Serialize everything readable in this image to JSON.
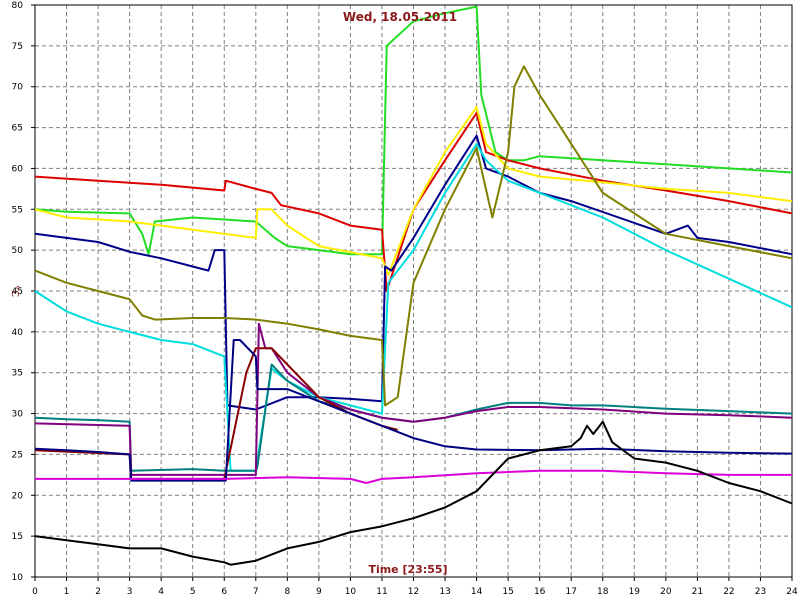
{
  "chart_data": {
    "type": "line",
    "title": "Wed, 18.05.2011",
    "xlabel": "Time [23:55]",
    "ylabel": "°C",
    "xlim": [
      0,
      24
    ],
    "ylim": [
      10,
      80
    ],
    "xticks": [
      "0",
      "1",
      "2",
      "3",
      "4",
      "5",
      "6",
      "7",
      "8",
      "9",
      "10",
      "11",
      "12",
      "13",
      "14",
      "15",
      "16",
      "17",
      "18",
      "19",
      "20",
      "21",
      "22",
      "23",
      "24"
    ],
    "yticks": [
      "10",
      "15",
      "20",
      "25",
      "30",
      "35",
      "40",
      "45",
      "50",
      "55",
      "60",
      "65",
      "70",
      "75",
      "80"
    ],
    "grid": true,
    "legend": "none",
    "background": "#ffffff",
    "grid_color": "#808080",
    "series": [
      {
        "color": "#22dd22",
        "x": [
          0,
          1,
          3,
          3.4,
          3.6,
          3.8,
          5,
          7,
          7.6,
          8,
          9,
          10,
          11,
          11.15,
          12,
          13,
          14,
          14.15,
          14.6,
          15,
          15.5,
          16,
          18,
          20,
          22,
          24
        ],
        "y": [
          55,
          54.7,
          54.5,
          52,
          49.5,
          53.5,
          54,
          53.5,
          51.5,
          50.5,
          50,
          49.5,
          49.5,
          75,
          78,
          79,
          79.8,
          69,
          62,
          61,
          61,
          61.5,
          61,
          60.5,
          60,
          59.5
        ]
      },
      {
        "color": "#dd0000",
        "x": [
          0,
          2,
          4,
          6,
          6.05,
          7,
          7.5,
          7.8,
          9,
          10,
          11,
          11.15,
          12,
          13,
          14,
          14.3,
          15,
          16,
          18,
          20,
          22,
          24
        ],
        "y": [
          59,
          58.5,
          58,
          57.3,
          58.5,
          57.5,
          57,
          55.5,
          54.5,
          53,
          52.5,
          45,
          55,
          61,
          66.8,
          62,
          61,
          60,
          58.5,
          57.3,
          56,
          54.5
        ]
      },
      {
        "color": "#ffee00",
        "x": [
          0,
          1,
          3,
          5,
          7,
          7.05,
          7.5,
          8,
          9,
          11,
          11.2,
          12,
          13,
          14,
          14.3,
          15,
          16,
          18,
          20,
          22,
          24
        ],
        "y": [
          55,
          54,
          53.5,
          52.5,
          51.5,
          55,
          55,
          53,
          50.5,
          49,
          47,
          55,
          62,
          67.5,
          63,
          60,
          59,
          58.3,
          57.5,
          57,
          56
        ]
      },
      {
        "color": "#00008b",
        "x": [
          0,
          2,
          3,
          4,
          5,
          5.5,
          5.7,
          6,
          6.1,
          7,
          8,
          9,
          10,
          11,
          11.1,
          11.3,
          12,
          13,
          14,
          14.3,
          15,
          16,
          17,
          20,
          20.7,
          21,
          22,
          24
        ],
        "y": [
          52,
          51,
          49.8,
          49,
          48,
          47.5,
          50,
          50,
          31,
          30.5,
          32,
          32,
          31.8,
          31.5,
          48,
          47.5,
          51.5,
          58,
          64,
          60,
          59,
          57,
          56,
          52,
          53,
          51.5,
          51,
          49.5
        ]
      },
      {
        "color": "#00dddd",
        "x": [
          0,
          1,
          2,
          3,
          4,
          5,
          6,
          6.2,
          7,
          7.5,
          8,
          9,
          10,
          11,
          11.2,
          12,
          13,
          14,
          14.3,
          15,
          16,
          18,
          20,
          22,
          24
        ],
        "y": [
          45,
          42.5,
          41,
          40,
          39,
          38.5,
          37,
          23,
          23,
          35.5,
          34,
          32,
          31,
          30,
          46,
          50,
          57,
          63,
          61,
          58.5,
          57,
          54,
          50,
          46.5,
          43
        ]
      },
      {
        "color": "#808000",
        "x": [
          0,
          1,
          2,
          3,
          3.4,
          3.8,
          5,
          6,
          7,
          8,
          9,
          10,
          11,
          11.1,
          11.5,
          12,
          13,
          14,
          14.5,
          15,
          15.2,
          15.5,
          16,
          18,
          20,
          22,
          24
        ],
        "y": [
          47.5,
          46,
          45,
          44,
          42,
          41.5,
          41.7,
          41.7,
          41.5,
          41,
          40.3,
          39.5,
          39,
          31,
          32,
          46,
          55,
          62.5,
          54,
          62,
          70,
          72.5,
          69,
          57,
          52,
          50.5,
          49
        ]
      },
      {
        "color": "#008080",
        "x": [
          0,
          1,
          2,
          3,
          3.05,
          5,
          6,
          7,
          7.05,
          7.5,
          8,
          9,
          10,
          11,
          12,
          13,
          14,
          15,
          16,
          17,
          18,
          20,
          22,
          24
        ],
        "y": [
          29.5,
          29.3,
          29.2,
          29,
          23,
          23.2,
          23,
          23,
          23.5,
          36,
          34,
          31.5,
          30.5,
          29.5,
          29,
          29.5,
          30.5,
          31.3,
          31.3,
          31,
          31,
          30.6,
          30.3,
          30
        ]
      },
      {
        "color": "#800080",
        "x": [
          0,
          2,
          3,
          3.05,
          6,
          7,
          7.1,
          7.3,
          7.5,
          8,
          9,
          10,
          11,
          12,
          13,
          14,
          15,
          16,
          18,
          20,
          22,
          24
        ],
        "y": [
          28.8,
          28.6,
          28.5,
          22.5,
          22.5,
          22.5,
          41,
          38,
          38,
          35,
          32,
          30.5,
          29.5,
          29,
          29.5,
          30.3,
          30.8,
          30.8,
          30.5,
          30,
          29.8,
          29.5
        ]
      },
      {
        "color": "#8b0000",
        "x": [
          0,
          3,
          3.05,
          6,
          6.7,
          7,
          7.5,
          8,
          9,
          10,
          11,
          11.5
        ],
        "y": [
          25.5,
          25,
          22,
          22,
          35,
          38,
          38,
          36,
          32,
          30,
          28.5,
          28
        ]
      },
      {
        "color": "#000080",
        "x": [
          0,
          1,
          2,
          3,
          3.05,
          5,
          6,
          6.05,
          6.3,
          6.5,
          7,
          7.05,
          8,
          9,
          10,
          11,
          12,
          13,
          14,
          16,
          18,
          20,
          22,
          24
        ],
        "y": [
          25.7,
          25.5,
          25.3,
          25,
          21.8,
          21.8,
          21.8,
          21.8,
          39,
          39,
          37,
          33,
          33,
          31.5,
          30,
          28.5,
          27,
          26,
          25.6,
          25.5,
          25.7,
          25.4,
          25.2,
          25.1
        ]
      },
      {
        "color": "#dd00dd",
        "x": [
          0,
          3,
          6,
          8,
          10,
          10.5,
          11,
          12,
          14,
          16,
          18,
          20,
          22,
          24
        ],
        "y": [
          22,
          22,
          22,
          22.2,
          22,
          21.5,
          22,
          22.2,
          22.7,
          23,
          23,
          22.7,
          22.5,
          22.5
        ]
      },
      {
        "color": "#000000",
        "x": [
          0,
          1,
          2,
          3,
          4,
          5,
          6,
          6.2,
          7,
          8,
          9,
          10,
          11,
          12,
          13,
          14,
          15,
          16,
          17,
          17.3,
          17.5,
          17.7,
          18,
          18.3,
          19,
          20,
          21,
          22,
          23,
          24
        ],
        "y": [
          15,
          14.5,
          14,
          13.5,
          13.5,
          12.5,
          11.8,
          11.5,
          12,
          13.5,
          14.3,
          15.5,
          16.2,
          17.2,
          18.5,
          20.5,
          24.5,
          25.5,
          26,
          27,
          28.5,
          27.5,
          29,
          26.5,
          24.5,
          24,
          23,
          21.5,
          20.5,
          19
        ]
      }
    ]
  }
}
